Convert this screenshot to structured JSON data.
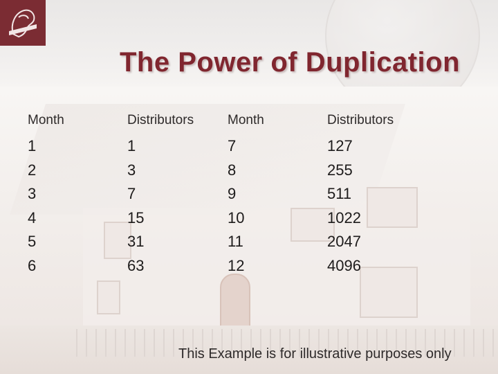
{
  "title": "The Power of Duplication",
  "headers": [
    "Month",
    "Distributors",
    "Month",
    "Distributors"
  ],
  "columns": [
    [
      "1",
      "2",
      "3",
      "4",
      "5",
      "6"
    ],
    [
      "1",
      "3",
      "7",
      "15",
      "31",
      "63"
    ],
    [
      "7",
      "8",
      "9",
      "10",
      "11",
      "12"
    ],
    [
      "127",
      "255",
      "511",
      "1022",
      "2047",
      "4096"
    ]
  ],
  "footer": "This Example is for illustrative purposes only",
  "logo": {
    "icon": "nevays-logo-icon",
    "color": "#7b2c33"
  },
  "accent_color": "#80262f"
}
